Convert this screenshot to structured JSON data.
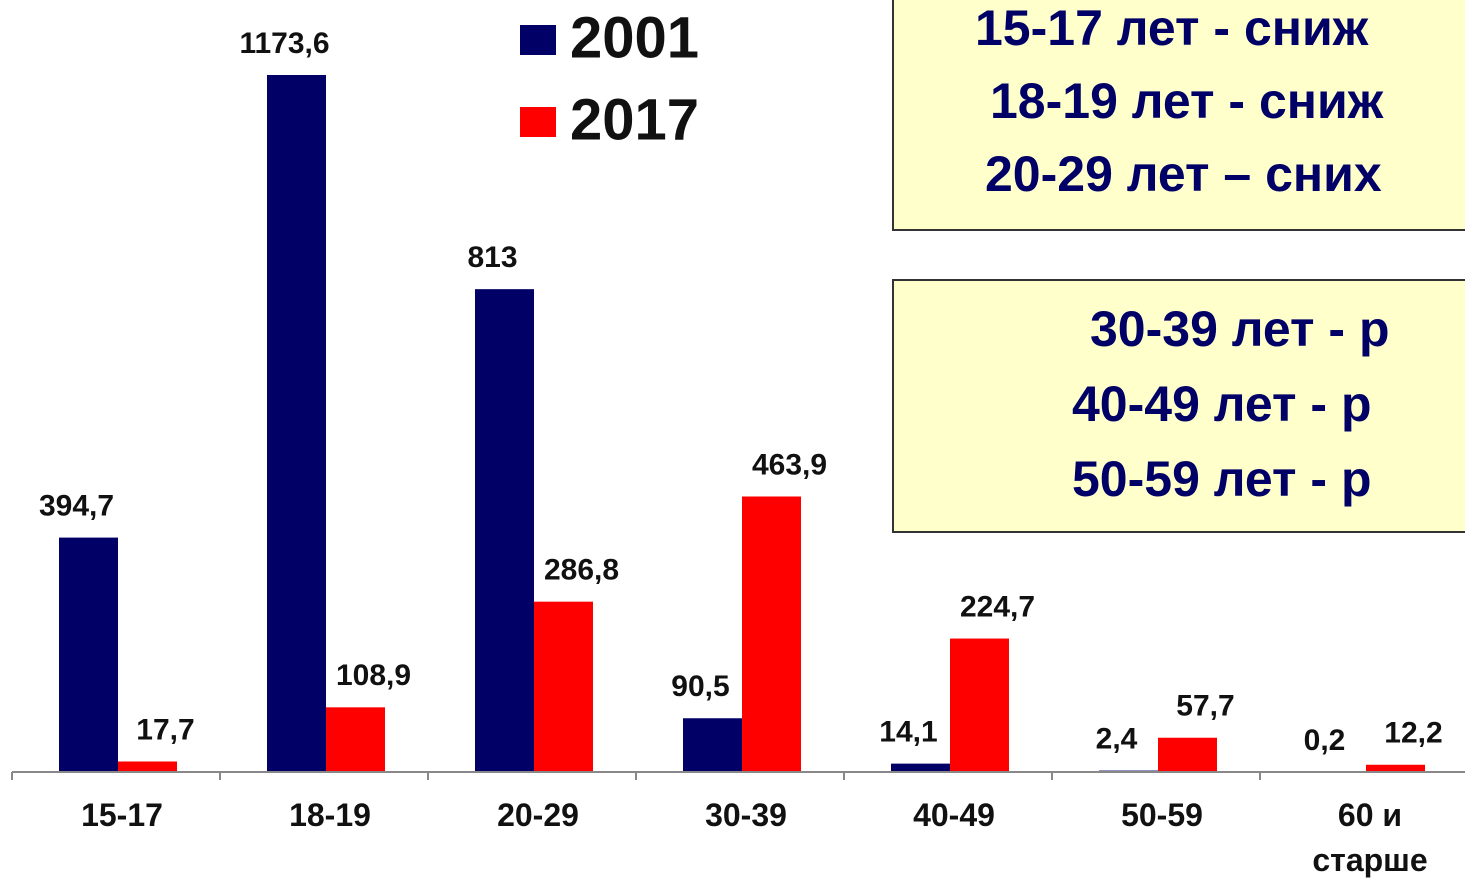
{
  "chart_data": {
    "type": "bar",
    "categories": [
      "15-17",
      "18-19",
      "20-29",
      "30-39",
      "40-49",
      "50-59",
      "60 и старше"
    ],
    "series": [
      {
        "name": "2001",
        "color": "#000066",
        "values": [
          394.7,
          1173.6,
          813,
          90.5,
          14.1,
          2.4,
          0.2
        ],
        "value_labels": [
          "394,7",
          "1173,6",
          "813",
          "90,5",
          "14,1",
          "2,4",
          "0,2"
        ]
      },
      {
        "name": "2017",
        "color": "#ff0000",
        "values": [
          17.7,
          108.9,
          286.8,
          463.9,
          224.7,
          57.7,
          12.2
        ],
        "value_labels": [
          "17,7",
          "108,9",
          "286,8",
          "463,9",
          "224,7",
          "57,7",
          "12,2"
        ]
      }
    ],
    "annotations": [
      [
        "15-17 лет - сниж",
        "18-19 лет - сниж",
        "20-29 лет – сних"
      ],
      [
        "30-39 лет - р",
        "40-49 лет - р",
        "50-59 лет - р"
      ]
    ]
  }
}
